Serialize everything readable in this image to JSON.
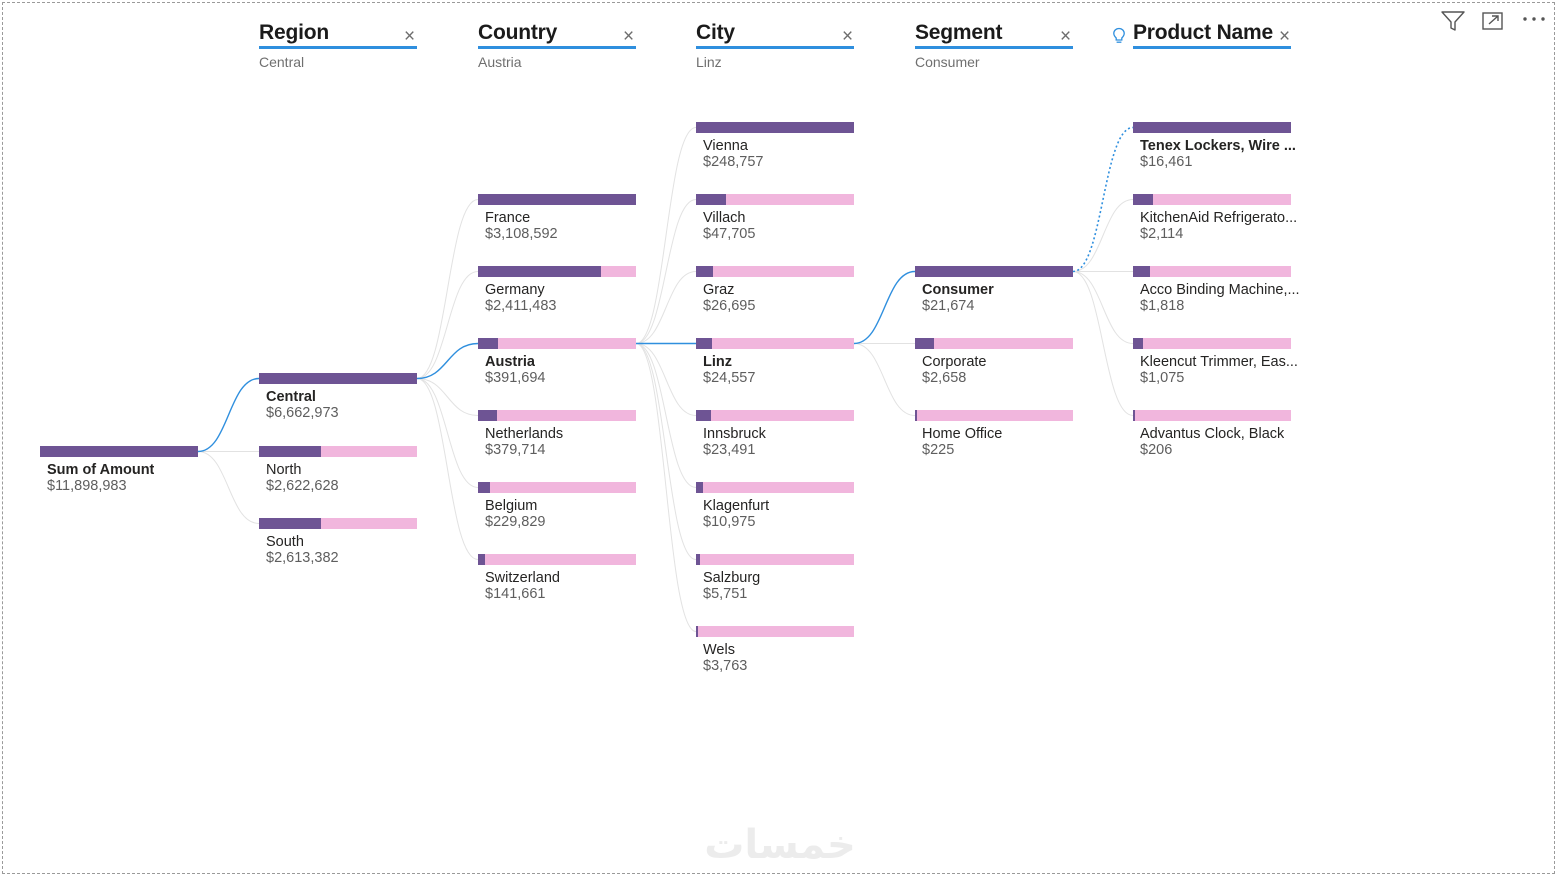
{
  "toolbar": {
    "filter_icon": "filter-icon",
    "focus_icon": "focus-mode-icon",
    "more_icon": "more-options-icon"
  },
  "colors": {
    "fill": "#6e5494",
    "track": "#f1b6dd",
    "accent": "#2f8fde",
    "link": "#e2e2e2"
  },
  "levels": [
    {
      "title": "Region",
      "selected": "Central"
    },
    {
      "title": "Country",
      "selected": "Austria"
    },
    {
      "title": "City",
      "selected": "Linz"
    },
    {
      "title": "Segment",
      "selected": "Consumer"
    },
    {
      "title": "Product Name",
      "selected": "",
      "ai_split": true
    }
  ],
  "root": {
    "label": "Sum of Amount",
    "value": "$11,898,983",
    "ratio": 1.0
  },
  "regions": [
    {
      "label": "Central",
      "value": "$6,662,973",
      "ratio": 1.0,
      "selected": true
    },
    {
      "label": "North",
      "value": "$2,622,628",
      "ratio": 0.394
    },
    {
      "label": "South",
      "value": "$2,613,382",
      "ratio": 0.392
    }
  ],
  "countries": [
    {
      "label": "France",
      "value": "$3,108,592",
      "ratio": 1.0
    },
    {
      "label": "Germany",
      "value": "$2,411,483",
      "ratio": 0.776
    },
    {
      "label": "Austria",
      "value": "$391,694",
      "ratio": 0.126,
      "selected": true
    },
    {
      "label": "Netherlands",
      "value": "$379,714",
      "ratio": 0.122
    },
    {
      "label": "Belgium",
      "value": "$229,829",
      "ratio": 0.074
    },
    {
      "label": "Switzerland",
      "value": "$141,661",
      "ratio": 0.046
    }
  ],
  "cities": [
    {
      "label": "Vienna",
      "value": "$248,757",
      "ratio": 1.0
    },
    {
      "label": "Villach",
      "value": "$47,705",
      "ratio": 0.192
    },
    {
      "label": "Graz",
      "value": "$26,695",
      "ratio": 0.107
    },
    {
      "label": "Linz",
      "value": "$24,557",
      "ratio": 0.099,
      "selected": true
    },
    {
      "label": "Innsbruck",
      "value": "$23,491",
      "ratio": 0.094
    },
    {
      "label": "Klagenfurt",
      "value": "$10,975",
      "ratio": 0.044
    },
    {
      "label": "Salzburg",
      "value": "$5,751",
      "ratio": 0.023
    },
    {
      "label": "Wels",
      "value": "$3,763",
      "ratio": 0.015
    }
  ],
  "segments": [
    {
      "label": "Consumer",
      "value": "$21,674",
      "ratio": 1.0,
      "selected": true
    },
    {
      "label": "Corporate",
      "value": "$2,658",
      "ratio": 0.123
    },
    {
      "label": "Home Office",
      "value": "$225",
      "ratio": 0.01
    }
  ],
  "products": [
    {
      "label": "Tenex Lockers, Wire ...",
      "value": "$16,461",
      "ratio": 1.0,
      "selected": true
    },
    {
      "label": "KitchenAid Refrigerato...",
      "value": "$2,114",
      "ratio": 0.128
    },
    {
      "label": "Acco Binding Machine,...",
      "value": "$1,818",
      "ratio": 0.11
    },
    {
      "label": "Kleencut Trimmer, Eas...",
      "value": "$1,075",
      "ratio": 0.065
    },
    {
      "label": "Advantus Clock, Black",
      "value": "$206",
      "ratio": 0.013
    }
  ],
  "watermark": {
    "text": "خمسات"
  }
}
